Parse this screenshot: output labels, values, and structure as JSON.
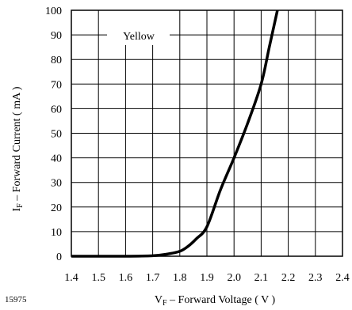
{
  "chart_data": {
    "type": "line",
    "series_label": "Yellow",
    "x_ticks": [
      "1.4",
      "1.5",
      "1.6",
      "1.7",
      "1.8",
      "1.9",
      "2.0",
      "2.1",
      "2.2",
      "2.3",
      "2.4"
    ],
    "y_ticks": [
      "0",
      "10",
      "20",
      "30",
      "40",
      "50",
      "60",
      "70",
      "80",
      "90",
      "100"
    ],
    "xlim": [
      1.4,
      2.4
    ],
    "ylim": [
      0,
      100
    ],
    "grid": true,
    "xlabel": {
      "main": "V",
      "sub": "F",
      "rest": " – Forward Voltage ( V )"
    },
    "ylabel": {
      "main": "I",
      "sub": "F",
      "rest": "  – Forward Current ( mA )"
    },
    "figure_id": "15975",
    "series": [
      {
        "name": "Yellow",
        "x": [
          1.4,
          1.6,
          1.7,
          1.75,
          1.8,
          1.83,
          1.86,
          1.9,
          1.95,
          2.0,
          2.05,
          2.1,
          2.13,
          2.16
        ],
        "y": [
          0,
          0,
          0.2,
          0.8,
          2,
          4,
          7,
          12,
          27,
          40,
          54,
          70,
          85,
          100
        ]
      }
    ]
  }
}
